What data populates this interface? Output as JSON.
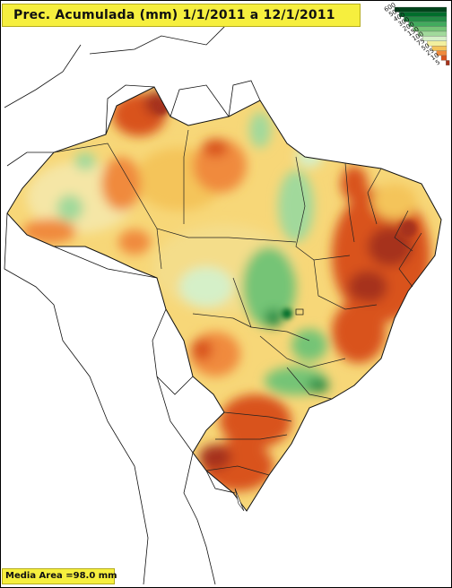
{
  "title": "Prec. Acumulada (mm) 1/1/2011 a 12/1/2011",
  "footer": "Media Area =98.0 mm",
  "legend": {
    "levels": [
      "600",
      "500",
      "400",
      "300",
      "200",
      "150",
      "100",
      "75",
      "50",
      "25",
      "10",
      "5"
    ],
    "colors": [
      "#00441b",
      "#006d2c",
      "#238b45",
      "#41ab5d",
      "#74c476",
      "#a1d99b",
      "#d5f0c8",
      "#f2ef9e",
      "#f4c45a",
      "#f08a3c",
      "#d9531e",
      "#a6321a"
    ]
  },
  "colors": {
    "title_bg": "#f6ef3e",
    "wet": "#41ab5d",
    "dry": "#d9531e",
    "very_dry": "#a6321a",
    "moderate": "#f4c45a"
  }
}
